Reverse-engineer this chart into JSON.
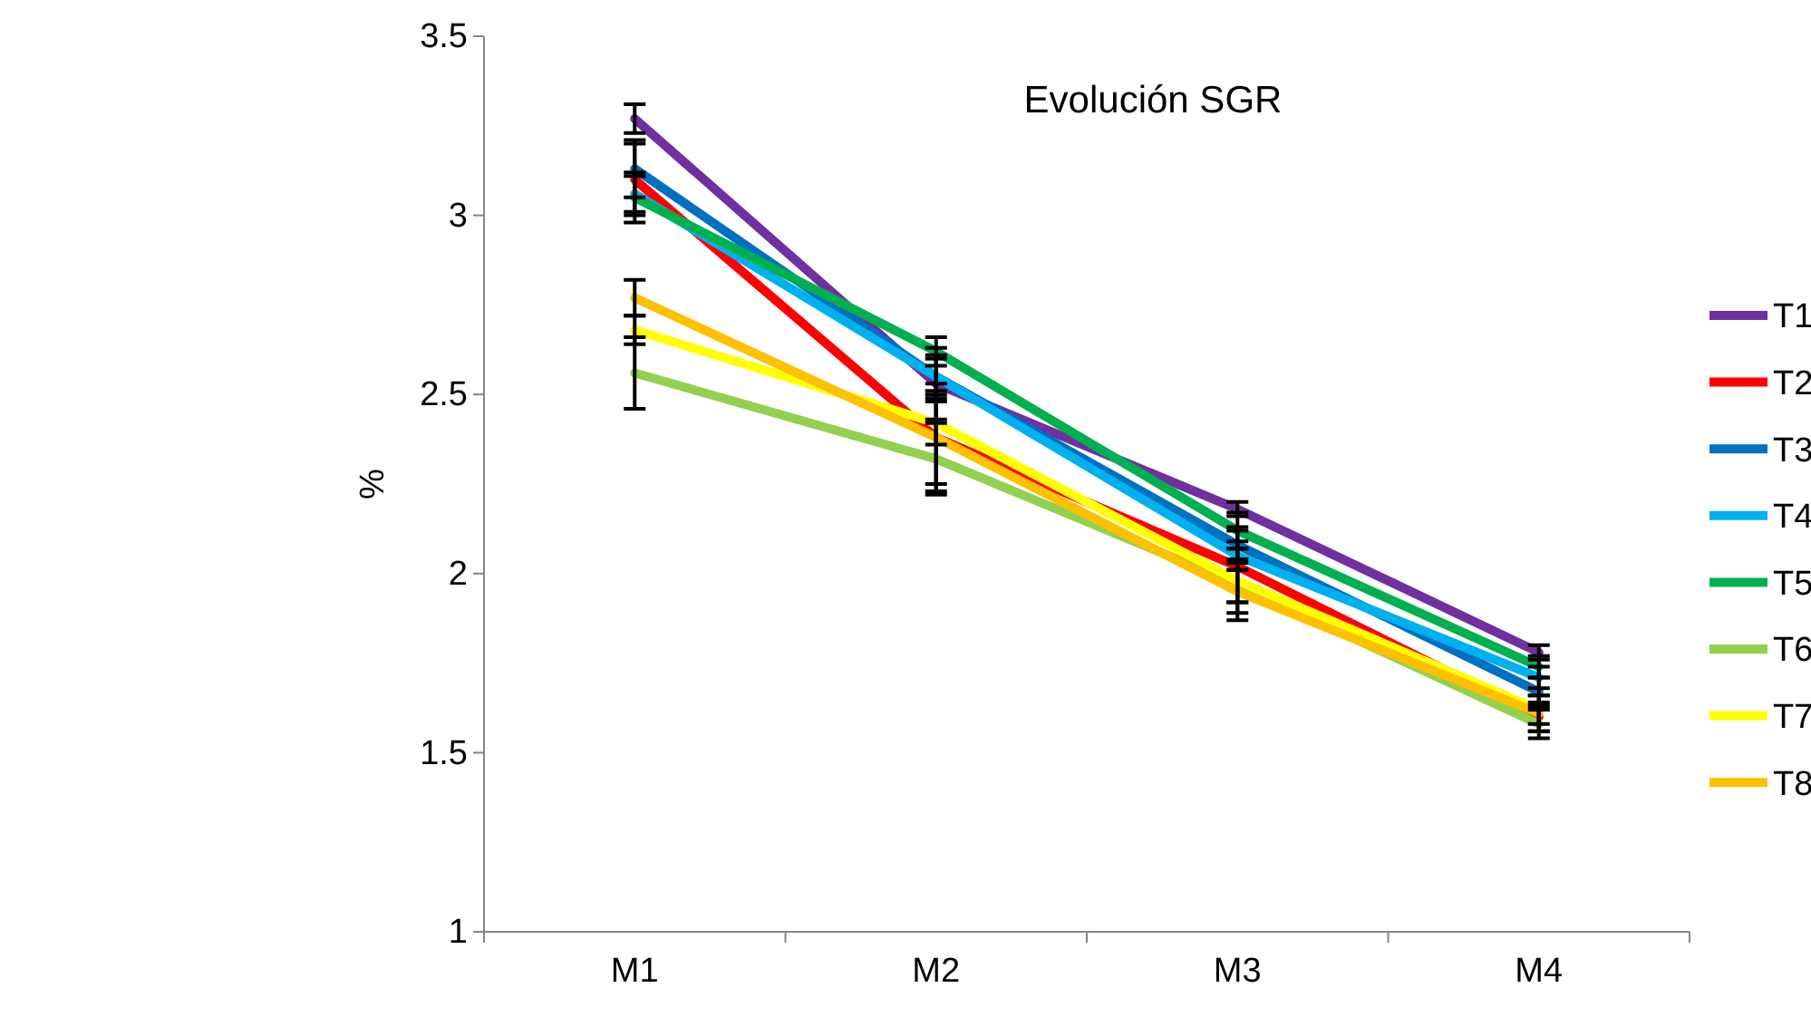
{
  "chart_data": {
    "type": "line",
    "title": "Evolución SGR",
    "ylabel": "%",
    "categories": [
      "M1",
      "M2",
      "M3",
      "M4"
    ],
    "ylim": [
      1,
      3.5
    ],
    "yticks": [
      1,
      1.5,
      2,
      2.5,
      3,
      3.5
    ],
    "grid": false,
    "legend": "right",
    "line_style": "solid",
    "series": [
      {
        "name": "T1",
        "color": "#7030a0",
        "values": [
          3.27,
          2.53,
          2.18,
          1.78
        ],
        "errors": [
          0.04,
          0.1,
          0.02,
          0.02
        ]
      },
      {
        "name": "T2",
        "color": "#ff0000",
        "values": [
          3.1,
          2.38,
          2.02,
          1.6
        ],
        "errors": [
          0.1,
          0.15,
          0.1,
          0.04
        ]
      },
      {
        "name": "T3",
        "color": "#0070c0",
        "values": [
          3.13,
          2.55,
          2.08,
          1.67
        ],
        "errors": [
          0.08,
          0.06,
          0.05,
          0.04
        ]
      },
      {
        "name": "T4",
        "color": "#00b0f0",
        "values": [
          3.06,
          2.55,
          2.05,
          1.71
        ],
        "errors": [
          0.05,
          0.05,
          0.04,
          0.03
        ]
      },
      {
        "name": "T5",
        "color": "#00b050",
        "values": [
          3.05,
          2.62,
          2.12,
          1.74
        ],
        "errors": [
          0.07,
          0.04,
          0.05,
          0.03
        ]
      },
      {
        "name": "T6",
        "color": "#92d050",
        "values": [
          2.56,
          2.32,
          1.97,
          1.58
        ],
        "errors": [
          0.1,
          0.1,
          0.1,
          0.04
        ]
      },
      {
        "name": "T7",
        "color": "#ffff00",
        "values": [
          2.68,
          2.42,
          1.98,
          1.62
        ],
        "errors": [
          0.04,
          0.06,
          0.06,
          0.04
        ]
      },
      {
        "name": "T8",
        "color": "#ffc000",
        "values": [
          2.77,
          2.38,
          1.95,
          1.61
        ],
        "errors": [
          0.05,
          0.13,
          0.06,
          0.05
        ]
      }
    ]
  }
}
